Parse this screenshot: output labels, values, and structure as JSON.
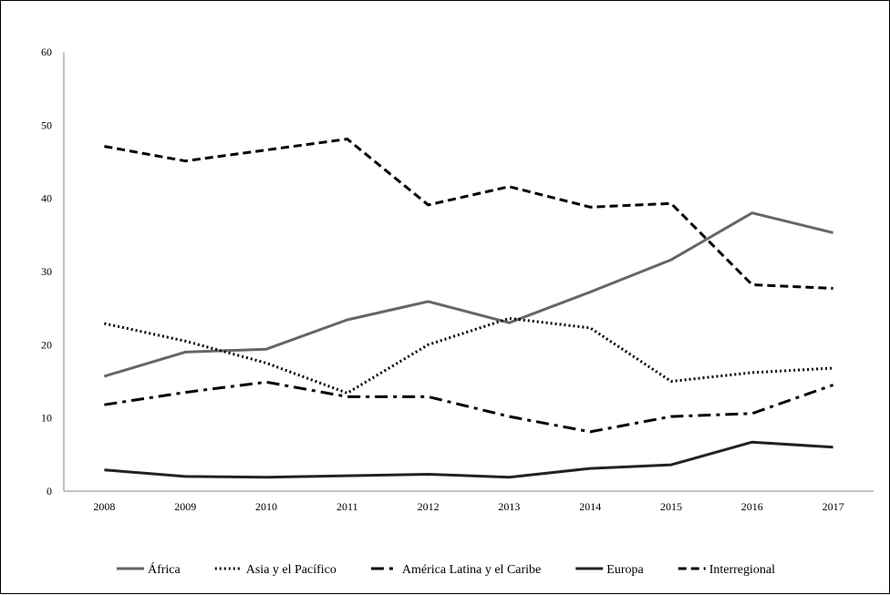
{
  "chart_data": {
    "type": "line",
    "title": "",
    "xlabel": "",
    "ylabel": "",
    "x": [
      "2008",
      "2009",
      "2010",
      "2011",
      "2012",
      "2013",
      "2014",
      "2015",
      "2016",
      "2017"
    ],
    "ylim": [
      0,
      60
    ],
    "yticks": [
      "0",
      "10",
      "20",
      "30",
      "40",
      "50",
      "60"
    ],
    "grid": false,
    "legend_position": "bottom",
    "series": [
      {
        "name": "África",
        "color": "#666666",
        "dash": "solid",
        "values": [
          15.7,
          19.0,
          19.4,
          23.4,
          25.9,
          23.0,
          27.2,
          31.6,
          38.0,
          35.3
        ]
      },
      {
        "name": "Asia y el Pacífico",
        "color": "#000000",
        "dash": "dot",
        "values": [
          22.9,
          20.5,
          17.5,
          13.4,
          20.0,
          23.6,
          22.3,
          15.0,
          16.2,
          16.8
        ]
      },
      {
        "name": "América Latina y el Caribe",
        "color": "#000000",
        "dash": "dashdot",
        "values": [
          11.8,
          13.5,
          14.9,
          12.9,
          12.9,
          10.2,
          8.1,
          10.2,
          10.6,
          14.5
        ]
      },
      {
        "name": "Europa",
        "color": "#222222",
        "dash": "solid",
        "values": [
          2.9,
          2.0,
          1.9,
          2.1,
          2.3,
          1.9,
          3.1,
          3.6,
          6.7,
          6.0
        ]
      },
      {
        "name": "Interregional",
        "color": "#000000",
        "dash": "dash",
        "values": [
          47.1,
          45.1,
          46.6,
          48.1,
          39.1,
          41.6,
          38.8,
          39.3,
          28.2,
          27.7
        ]
      }
    ]
  }
}
